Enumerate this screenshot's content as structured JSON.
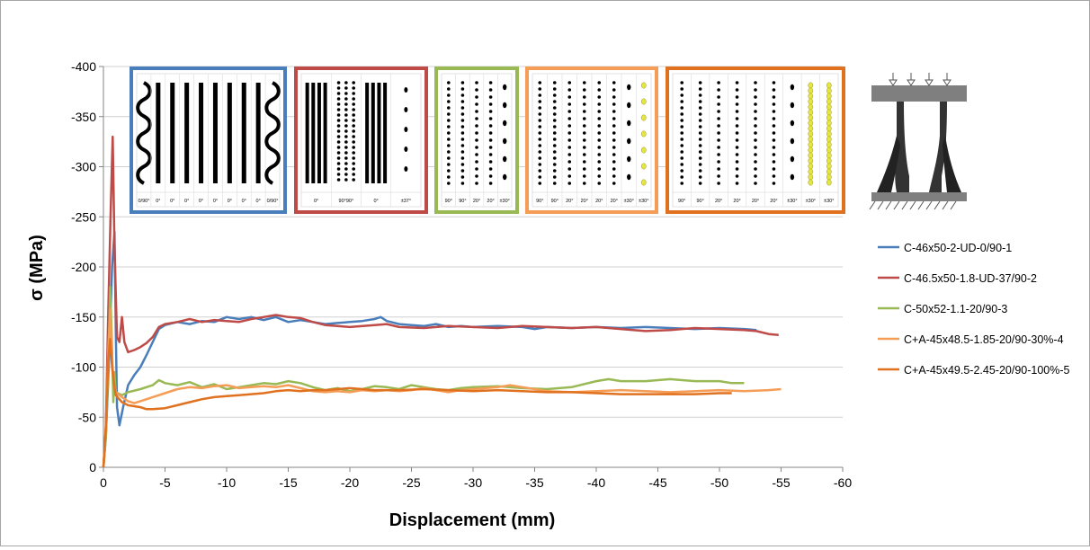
{
  "chart_data": {
    "type": "line",
    "title": "",
    "xlabel": "Displacement (mm)",
    "ylabel": "σ  (MPa)",
    "xlim": [
      0,
      -60
    ],
    "ylim": [
      0,
      -400
    ],
    "x_ticks": [
      "0",
      "-5",
      "-10",
      "-15",
      "-20",
      "-25",
      "-30",
      "-35",
      "-40",
      "-45",
      "-50",
      "-55",
      "-60"
    ],
    "y_ticks": [
      "0",
      "-50",
      "-100",
      "-150",
      "-200",
      "-250",
      "-300",
      "-350",
      "-400"
    ],
    "grid": "horizontal",
    "legend_position": "right",
    "series": [
      {
        "name": "C-46x50-2-UD-0/90-1",
        "color": "#4a7ebb",
        "points": [
          [
            0,
            0
          ],
          [
            -0.2,
            -30
          ],
          [
            -0.5,
            -120
          ],
          [
            -0.7,
            -200
          ],
          [
            -0.9,
            -235
          ],
          [
            -1.0,
            -140
          ],
          [
            -1.1,
            -60
          ],
          [
            -1.3,
            -42
          ],
          [
            -1.6,
            -60
          ],
          [
            -2,
            -82
          ],
          [
            -2.5,
            -92
          ],
          [
            -3,
            -100
          ],
          [
            -3.5,
            -112
          ],
          [
            -4,
            -125
          ],
          [
            -4.5,
            -138
          ],
          [
            -5,
            -142
          ],
          [
            -6,
            -145
          ],
          [
            -7,
            -143
          ],
          [
            -8,
            -146
          ],
          [
            -9,
            -145
          ],
          [
            -10,
            -150
          ],
          [
            -11,
            -148
          ],
          [
            -12,
            -150
          ],
          [
            -13,
            -147
          ],
          [
            -14,
            -150
          ],
          [
            -15,
            -145
          ],
          [
            -16,
            -147
          ],
          [
            -17,
            -145
          ],
          [
            -18,
            -143
          ],
          [
            -19,
            -144
          ],
          [
            -20,
            -145
          ],
          [
            -21,
            -146
          ],
          [
            -22,
            -148
          ],
          [
            -22.5,
            -150
          ],
          [
            -23,
            -146
          ],
          [
            -24,
            -143
          ],
          [
            -25,
            -142
          ],
          [
            -26,
            -141
          ],
          [
            -27,
            -143
          ],
          [
            -28,
            -140
          ],
          [
            -29,
            -141
          ],
          [
            -30,
            -140
          ],
          [
            -32,
            -141
          ],
          [
            -34,
            -140
          ],
          [
            -35,
            -138
          ],
          [
            -36,
            -140
          ],
          [
            -38,
            -139
          ],
          [
            -40,
            -140
          ],
          [
            -42,
            -139
          ],
          [
            -44,
            -140
          ],
          [
            -46,
            -139
          ],
          [
            -48,
            -138
          ],
          [
            -50,
            -139
          ],
          [
            -52,
            -138
          ],
          [
            -53,
            -137
          ]
        ]
      },
      {
        "name": "C-46.5x50-1.8-UD-37/90-2",
        "color": "#be4b48",
        "points": [
          [
            0,
            0
          ],
          [
            -0.2,
            -40
          ],
          [
            -0.4,
            -160
          ],
          [
            -0.6,
            -260
          ],
          [
            -0.75,
            -330
          ],
          [
            -0.9,
            -220
          ],
          [
            -1.1,
            -130
          ],
          [
            -1.3,
            -125
          ],
          [
            -1.5,
            -150
          ],
          [
            -1.7,
            -125
          ],
          [
            -2,
            -115
          ],
          [
            -2.5,
            -117
          ],
          [
            -3,
            -120
          ],
          [
            -3.5,
            -124
          ],
          [
            -4,
            -130
          ],
          [
            -4.5,
            -140
          ],
          [
            -5,
            -143
          ],
          [
            -6,
            -145
          ],
          [
            -7,
            -148
          ],
          [
            -8,
            -145
          ],
          [
            -9,
            -147
          ],
          [
            -10,
            -146
          ],
          [
            -11,
            -145
          ],
          [
            -12,
            -148
          ],
          [
            -13,
            -150
          ],
          [
            -14,
            -152
          ],
          [
            -15,
            -150
          ],
          [
            -16,
            -149
          ],
          [
            -17,
            -145
          ],
          [
            -18,
            -142
          ],
          [
            -19,
            -141
          ],
          [
            -20,
            -140
          ],
          [
            -22,
            -142
          ],
          [
            -23,
            -143
          ],
          [
            -24,
            -140
          ],
          [
            -26,
            -139
          ],
          [
            -28,
            -141
          ],
          [
            -30,
            -140
          ],
          [
            -32,
            -139
          ],
          [
            -34,
            -141
          ],
          [
            -36,
            -140
          ],
          [
            -38,
            -139
          ],
          [
            -40,
            -140
          ],
          [
            -42,
            -138
          ],
          [
            -44,
            -136
          ],
          [
            -46,
            -137
          ],
          [
            -48,
            -139
          ],
          [
            -50,
            -138
          ],
          [
            -52,
            -137
          ],
          [
            -53,
            -136
          ],
          [
            -54,
            -133
          ],
          [
            -54.8,
            -132
          ]
        ]
      },
      {
        "name": "C-50x52-1.1-20/90-3",
        "color": "#98b954",
        "points": [
          [
            0,
            0
          ],
          [
            -0.2,
            -30
          ],
          [
            -0.4,
            -100
          ],
          [
            -0.55,
            -180
          ],
          [
            -0.7,
            -120
          ],
          [
            -0.8,
            -65
          ],
          [
            -0.9,
            -95
          ],
          [
            -1,
            -75
          ],
          [
            -1.5,
            -72
          ],
          [
            -2,
            -75
          ],
          [
            -3,
            -78
          ],
          [
            -4,
            -82
          ],
          [
            -4.5,
            -87
          ],
          [
            -5,
            -84
          ],
          [
            -6,
            -82
          ],
          [
            -7,
            -85
          ],
          [
            -8,
            -80
          ],
          [
            -9,
            -83
          ],
          [
            -10,
            -78
          ],
          [
            -11,
            -80
          ],
          [
            -12,
            -82
          ],
          [
            -13,
            -84
          ],
          [
            -14,
            -83
          ],
          [
            -15,
            -86
          ],
          [
            -16,
            -84
          ],
          [
            -17,
            -80
          ],
          [
            -18,
            -77
          ],
          [
            -19,
            -79
          ],
          [
            -20,
            -76
          ],
          [
            -21,
            -78
          ],
          [
            -22,
            -81
          ],
          [
            -23,
            -80
          ],
          [
            -24,
            -78
          ],
          [
            -25,
            -82
          ],
          [
            -26,
            -80
          ],
          [
            -27,
            -78
          ],
          [
            -28,
            -77
          ],
          [
            -29,
            -79
          ],
          [
            -30,
            -80
          ],
          [
            -32,
            -81
          ],
          [
            -34,
            -79
          ],
          [
            -36,
            -78
          ],
          [
            -38,
            -80
          ],
          [
            -40,
            -86
          ],
          [
            -41,
            -88
          ],
          [
            -42,
            -86
          ],
          [
            -44,
            -86
          ],
          [
            -46,
            -88
          ],
          [
            -48,
            -86
          ],
          [
            -50,
            -86
          ],
          [
            -51,
            -84
          ],
          [
            -52,
            -84
          ]
        ]
      },
      {
        "name": "C+A-45x48.5-1.85-20/90-30%-4",
        "color": "#f59d56",
        "points": [
          [
            0,
            0
          ],
          [
            -0.2,
            -40
          ],
          [
            -0.4,
            -120
          ],
          [
            -0.55,
            -158
          ],
          [
            -0.7,
            -110
          ],
          [
            -0.8,
            -90
          ],
          [
            -0.9,
            -80
          ],
          [
            -1,
            -75
          ],
          [
            -1.5,
            -70
          ],
          [
            -2,
            -66
          ],
          [
            -2.5,
            -64
          ],
          [
            -3,
            -66
          ],
          [
            -4,
            -70
          ],
          [
            -5,
            -74
          ],
          [
            -6,
            -78
          ],
          [
            -7,
            -80
          ],
          [
            -8,
            -79
          ],
          [
            -9,
            -81
          ],
          [
            -10,
            -82
          ],
          [
            -11,
            -79
          ],
          [
            -12,
            -80
          ],
          [
            -13,
            -81
          ],
          [
            -14,
            -80
          ],
          [
            -15,
            -82
          ],
          [
            -16,
            -79
          ],
          [
            -17,
            -76
          ],
          [
            -18,
            -75
          ],
          [
            -19,
            -76
          ],
          [
            -20,
            -75
          ],
          [
            -21,
            -77
          ],
          [
            -22,
            -76
          ],
          [
            -23,
            -77
          ],
          [
            -24,
            -76
          ],
          [
            -25,
            -77
          ],
          [
            -26,
            -79
          ],
          [
            -27,
            -77
          ],
          [
            -28,
            -75
          ],
          [
            -29,
            -77
          ],
          [
            -30,
            -78
          ],
          [
            -32,
            -80
          ],
          [
            -33,
            -82
          ],
          [
            -34,
            -80
          ],
          [
            -35,
            -78
          ],
          [
            -36,
            -76
          ],
          [
            -38,
            -75
          ],
          [
            -40,
            -76
          ],
          [
            -42,
            -77
          ],
          [
            -44,
            -76
          ],
          [
            -46,
            -75
          ],
          [
            -48,
            -76
          ],
          [
            -50,
            -77
          ],
          [
            -52,
            -76
          ],
          [
            -54,
            -77
          ],
          [
            -55,
            -78
          ]
        ]
      },
      {
        "name": "C+A-45x49.5-2.45-20/90-100%-5",
        "color": "#e0711f",
        "points": [
          [
            0,
            0
          ],
          [
            -0.2,
            -40
          ],
          [
            -0.4,
            -110
          ],
          [
            -0.55,
            -128
          ],
          [
            -0.7,
            -100
          ],
          [
            -0.9,
            -80
          ],
          [
            -1,
            -72
          ],
          [
            -1.5,
            -65
          ],
          [
            -2,
            -62
          ],
          [
            -3,
            -60
          ],
          [
            -3.5,
            -58
          ],
          [
            -4,
            -58
          ],
          [
            -5,
            -59
          ],
          [
            -6,
            -62
          ],
          [
            -7,
            -65
          ],
          [
            -8,
            -68
          ],
          [
            -9,
            -70
          ],
          [
            -10,
            -71
          ],
          [
            -11,
            -72
          ],
          [
            -12,
            -73
          ],
          [
            -13,
            -74
          ],
          [
            -14,
            -76
          ],
          [
            -15,
            -77
          ],
          [
            -16,
            -76
          ],
          [
            -17,
            -77
          ],
          [
            -18,
            -77
          ],
          [
            -19,
            -78
          ],
          [
            -20,
            -79
          ],
          [
            -21,
            -78
          ],
          [
            -22,
            -77
          ],
          [
            -24,
            -77
          ],
          [
            -26,
            -78
          ],
          [
            -28,
            -77
          ],
          [
            -30,
            -76
          ],
          [
            -32,
            -77
          ],
          [
            -34,
            -76
          ],
          [
            -36,
            -75
          ],
          [
            -38,
            -75
          ],
          [
            -40,
            -74
          ],
          [
            -42,
            -73
          ],
          [
            -44,
            -73
          ],
          [
            -46,
            -73
          ],
          [
            -48,
            -73
          ],
          [
            -50,
            -74
          ],
          [
            -51,
            -74
          ]
        ]
      }
    ]
  },
  "insets": [
    {
      "frame_color": "#4a7ebb",
      "labels": [
        "0/90°",
        "0°",
        "0°",
        "0°",
        "0°",
        "0°",
        "0°",
        "0°",
        "0°",
        "0/90°"
      ]
    },
    {
      "frame_color": "#be4b48",
      "labels": [
        "0°",
        "90°90°",
        "0°",
        "±37°"
      ]
    },
    {
      "frame_color": "#98b954",
      "labels": [
        "90°",
        "90°",
        "20°",
        "20°",
        "±30°"
      ]
    },
    {
      "frame_color": "#f59d56",
      "labels": [
        "90°",
        "90°",
        "20°",
        "20°",
        "20°",
        "20°",
        "±30°",
        "±30°"
      ]
    },
    {
      "frame_color": "#e0711f",
      "labels": [
        "90°",
        "90°",
        "20°",
        "20°",
        "20°",
        "20°",
        "±30°",
        "±30°",
        "±30°"
      ]
    }
  ]
}
